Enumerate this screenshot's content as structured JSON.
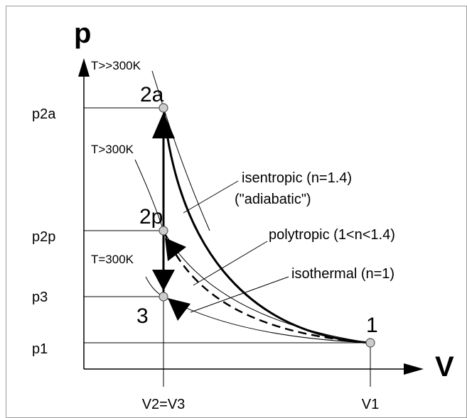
{
  "axes": {
    "y_label": "p",
    "x_label": "V"
  },
  "pressure_labels": [
    "p2a",
    "p2p",
    "p3",
    "p1"
  ],
  "volume_labels": [
    "V2=V3",
    "V1"
  ],
  "points": [
    "2a",
    "2p",
    "3",
    "1"
  ],
  "temperatures": [
    "T>>300K",
    "T>300K",
    "T=300K"
  ],
  "processes": {
    "isentropic": "isentropic (n=1.4)",
    "isentropic_note": "(\"adiabatic\")",
    "polytropic": "polytropic (1<n<1.4)",
    "isothermal": "isothermal (n=1)"
  }
}
